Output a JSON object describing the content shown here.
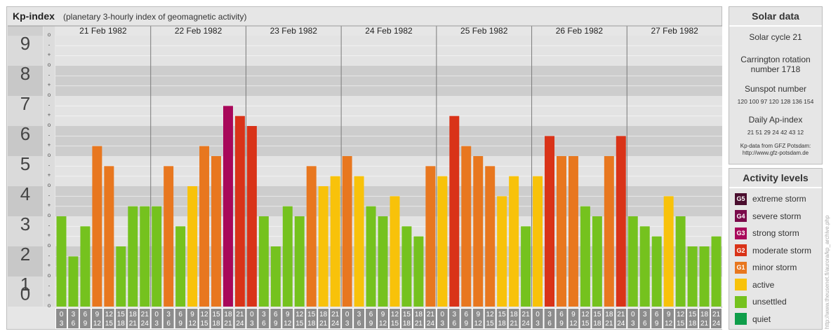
{
  "chart_title": "Kp-index",
  "chart_subtitle": "(planetary 3-hourly index of geomagnetic activity)",
  "chart_data": {
    "type": "bar",
    "title": "Kp-index",
    "subtitle": "(planetary 3-hourly index of geomagnetic activity)",
    "ylim": [
      0,
      9
    ],
    "yticks": [
      "0",
      "1",
      "2",
      "3",
      "4",
      "5",
      "6",
      "7",
      "8",
      "9"
    ],
    "ysubticks": [
      "o",
      "+",
      "-",
      "o",
      "+",
      "-",
      "o",
      "+",
      "-",
      "o",
      "+",
      "-",
      "o",
      "+",
      "-",
      "o",
      "+",
      "-",
      "o",
      "+",
      "-",
      "o",
      "+",
      "-",
      "o",
      "+",
      "-",
      "o"
    ],
    "days": [
      "21 Feb 1982",
      "22 Feb 1982",
      "23 Feb 1982",
      "24 Feb 1982",
      "25 Feb 1982",
      "26 Feb 1982",
      "27 Feb 1982"
    ],
    "interval_top": [
      "0",
      "3",
      "6",
      "9",
      "12",
      "15",
      "18",
      "21"
    ],
    "interval_bottom": [
      "3",
      "6",
      "9",
      "12",
      "15",
      "18",
      "21",
      "24"
    ],
    "values": [
      3.0,
      1.667,
      2.667,
      5.333,
      4.667,
      2.0,
      3.333,
      3.333,
      3.333,
      4.667,
      2.667,
      4.0,
      5.333,
      5.0,
      6.667,
      6.333,
      6.0,
      3.0,
      2.0,
      3.333,
      3.0,
      4.667,
      4.0,
      4.333,
      5.0,
      4.333,
      3.333,
      3.0,
      3.667,
      2.667,
      2.333,
      4.667,
      4.333,
      6.333,
      5.333,
      5.0,
      4.667,
      3.667,
      4.333,
      2.667,
      4.333,
      5.667,
      5.0,
      5.0,
      3.333,
      3.0,
      5.0,
      5.667,
      3.0,
      2.667,
      2.333,
      3.667,
      3.0,
      2.0,
      2.0,
      2.333
    ]
  },
  "solar_data": {
    "title": "Solar data",
    "solar_cycle": "Solar cycle 21",
    "carrington_line1": "Carrington rotation",
    "carrington_line2": "number 1718",
    "sunspot_title": "Sunspot number",
    "sunspot_values": "120 100 97 120 128 136 154",
    "ap_title": "Daily Ap-index",
    "ap_values": "21 51 29 24 42 43 12",
    "source_line1": "Kp-data from GFZ Potsdam:",
    "source_line2": "http://www.gfz-potsdam.de"
  },
  "activity_levels": {
    "title": "Activity levels",
    "items": [
      {
        "code": "G5",
        "label": "extreme storm",
        "color": "#4a0e2e"
      },
      {
        "code": "G4",
        "label": "severe storm",
        "color": "#7a0a4a"
      },
      {
        "code": "G3",
        "label": "strong storm",
        "color": "#a8085a"
      },
      {
        "code": "G2",
        "label": "moderate storm",
        "color": "#d93318"
      },
      {
        "code": "G1",
        "label": "minor storm",
        "color": "#e8771f"
      },
      {
        "code": "",
        "label": "active",
        "color": "#f8c20a"
      },
      {
        "code": "",
        "label": "unsettled",
        "color": "#75c21e"
      },
      {
        "code": "",
        "label": "quiet",
        "color": "#0f9e4a"
      }
    ]
  },
  "watermark": "http://www.theusenet.fi/aurora/kp_archive.php"
}
